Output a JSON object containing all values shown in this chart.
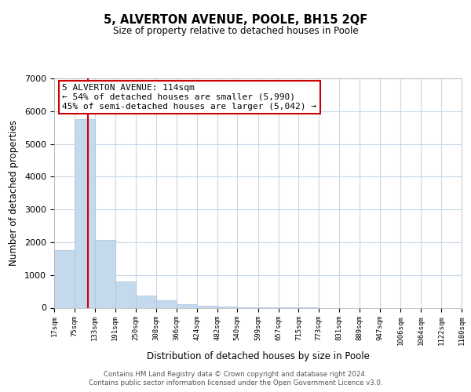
{
  "title": "5, ALVERTON AVENUE, POOLE, BH15 2QF",
  "subtitle": "Size of property relative to detached houses in Poole",
  "xlabel": "Distribution of detached houses by size in Poole",
  "ylabel": "Number of detached properties",
  "bar_edges": [
    17,
    75,
    133,
    191,
    250,
    308,
    366,
    424,
    482,
    540,
    599,
    657,
    715,
    773,
    831,
    889,
    947,
    1006,
    1064,
    1122,
    1180
  ],
  "bar_heights": [
    1770,
    5760,
    2060,
    800,
    360,
    220,
    110,
    60,
    30,
    20,
    10,
    5,
    3,
    0,
    0,
    0,
    0,
    0,
    0,
    0
  ],
  "bar_color": "#c5d9ed",
  "bar_edgecolor": "#aac4de",
  "property_line_x": 114,
  "property_line_color": "#cc0000",
  "annotation_title": "5 ALVERTON AVENUE: 114sqm",
  "annotation_line1": "← 54% of detached houses are smaller (5,990)",
  "annotation_line2": "45% of semi-detached houses are larger (5,042) →",
  "annotation_box_color": "#ffffff",
  "annotation_box_edgecolor": "#cc0000",
  "ylim": [
    0,
    7000
  ],
  "xlim": [
    17,
    1180
  ],
  "tick_labels": [
    "17sqm",
    "75sqm",
    "133sqm",
    "191sqm",
    "250sqm",
    "308sqm",
    "366sqm",
    "424sqm",
    "482sqm",
    "540sqm",
    "599sqm",
    "657sqm",
    "715sqm",
    "773sqm",
    "831sqm",
    "889sqm",
    "947sqm",
    "1006sqm",
    "1064sqm",
    "1122sqm",
    "1180sqm"
  ],
  "tick_positions": [
    17,
    75,
    133,
    191,
    250,
    308,
    366,
    424,
    482,
    540,
    599,
    657,
    715,
    773,
    831,
    889,
    947,
    1006,
    1064,
    1122,
    1180
  ],
  "ytick_labels": [
    "0",
    "1000",
    "2000",
    "3000",
    "4000",
    "5000",
    "6000",
    "7000"
  ],
  "ytick_positions": [
    0,
    1000,
    2000,
    3000,
    4000,
    5000,
    6000,
    7000
  ],
  "footer_line1": "Contains HM Land Registry data © Crown copyright and database right 2024.",
  "footer_line2": "Contains public sector information licensed under the Open Government Licence v3.0.",
  "background_color": "#ffffff",
  "grid_color": "#c8d8e8"
}
